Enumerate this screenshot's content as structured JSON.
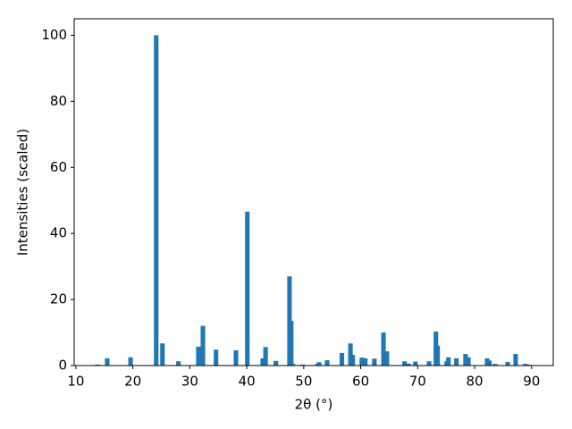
{
  "chart_data": {
    "type": "bar",
    "xlabel": "2θ (°)",
    "ylabel": "Intensities (scaled)",
    "color": "#1f77b4",
    "x": [
      13.8,
      15.5,
      19.6,
      24.1,
      25.2,
      28.0,
      31.5,
      32.3,
      34.6,
      38.1,
      40.1,
      42.8,
      43.3,
      45.1,
      47.5,
      47.8,
      48.1,
      49.8,
      52.4,
      52.7,
      54.1,
      56.7,
      58.2,
      58.6,
      60.2,
      60.8,
      62.4,
      64.0,
      64.6,
      67.7,
      68.4,
      69.6,
      72.0,
      73.2,
      73.5,
      75.1,
      75.4,
      76.8,
      78.4,
      78.9,
      82.2,
      82.6,
      83.6,
      85.8,
      87.2,
      88.9,
      89.4
    ],
    "values": [
      0.3,
      2.2,
      2.5,
      100,
      6.7,
      1.3,
      5.7,
      12,
      4.8,
      4.6,
      46.6,
      2.2,
      5.6,
      1.4,
      27,
      13.5,
      0.5,
      0.3,
      0.5,
      1,
      1.6,
      3.8,
      6.7,
      3.2,
      2.4,
      2.2,
      2.1,
      10,
      4.3,
      1.3,
      0.6,
      1.2,
      1.3,
      10.3,
      6,
      1.3,
      2.5,
      2.2,
      3.5,
      2.5,
      2.2,
      1.5,
      0.5,
      1.1,
      3.5,
      0.5,
      0.3
    ],
    "xlim": [
      9.7,
      93.8
    ],
    "ylim": [
      0,
      105
    ],
    "xticks": [
      10,
      20,
      30,
      40,
      50,
      60,
      70,
      80,
      90
    ],
    "yticks": [
      0,
      20,
      40,
      60,
      80,
      100
    ]
  }
}
